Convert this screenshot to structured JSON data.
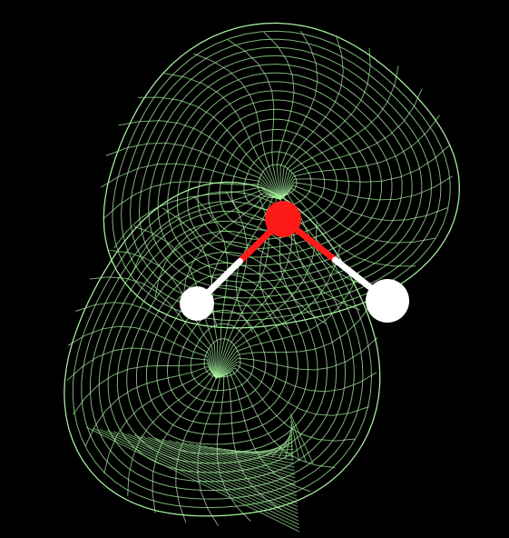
{
  "scene": {
    "background_color": "#000000",
    "surface": {
      "kind": "wireframe isosurface",
      "color": "#a8f0a0"
    },
    "molecule": {
      "atoms": [
        {
          "element": "O",
          "color": "#ff1a1a"
        },
        {
          "element": "H",
          "color": "#ffffff"
        },
        {
          "element": "H",
          "color": "#ffffff"
        }
      ],
      "bonds": [
        {
          "from": 0,
          "to": 1
        },
        {
          "from": 0,
          "to": 2
        }
      ]
    }
  }
}
